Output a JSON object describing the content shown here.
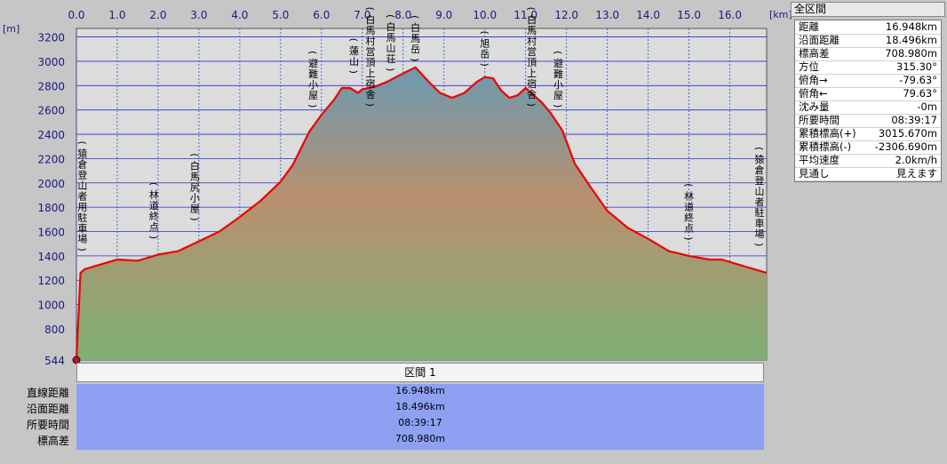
{
  "colors": {
    "plot_background": "#dcdcdc",
    "grid": "#2233cc",
    "profile_line": "#ee0000",
    "fill_top": "#6c9ab0",
    "fill_mid": "#b8906e",
    "fill_bottom": "#7fb075",
    "axis_text": "#1a1a80",
    "info_band": "#8ea0f2"
  },
  "chart_data": {
    "type": "area",
    "xlabel_unit": "[km]",
    "ylabel_unit": "[m]",
    "xlim": [
      0.0,
      16.9
    ],
    "ylim": [
      544,
      3270
    ],
    "x_ticks": [
      "0.0",
      "1.0",
      "2.0",
      "3.0",
      "4.0",
      "5.0",
      "6.0",
      "7.0",
      "8.0",
      "9.0",
      "10.0",
      "11.0",
      "12.0",
      "13.0",
      "14.0",
      "15.0",
      "16.0"
    ],
    "x_tick_values": [
      0,
      1,
      2,
      3,
      4,
      5,
      6,
      7,
      8,
      9,
      10,
      11,
      12,
      13,
      14,
      15,
      16
    ],
    "y_ticks": [
      "544",
      "800",
      "1000",
      "1200",
      "1400",
      "1600",
      "1800",
      "2000",
      "2200",
      "2400",
      "2600",
      "2800",
      "3000",
      "3200"
    ],
    "y_tick_values": [
      544,
      800,
      1000,
      1200,
      1400,
      1600,
      1800,
      2000,
      2200,
      2400,
      2600,
      2800,
      3000,
      3200
    ],
    "series": [
      {
        "x": [
          0.0,
          0.1,
          0.2,
          0.5,
          1.0,
          1.5,
          2.0,
          2.5,
          3.0,
          3.5,
          4.0,
          4.5,
          5.0,
          5.3,
          5.7,
          6.0,
          6.3,
          6.5,
          6.7,
          6.9,
          7.0,
          7.3,
          7.6,
          8.0,
          8.3,
          8.6,
          8.9,
          9.2,
          9.5,
          9.8,
          10.0,
          10.2,
          10.4,
          10.6,
          10.8,
          11.0,
          11.2,
          11.4,
          11.6,
          11.9,
          12.2,
          12.6,
          13.0,
          13.5,
          14.0,
          14.5,
          15.0,
          15.5,
          15.8,
          16.2,
          16.6,
          16.9
        ],
        "y": [
          544,
          1260,
          1290,
          1320,
          1370,
          1360,
          1410,
          1440,
          1520,
          1600,
          1720,
          1850,
          2010,
          2150,
          2420,
          2560,
          2680,
          2780,
          2780,
          2740,
          2770,
          2790,
          2830,
          2900,
          2950,
          2840,
          2740,
          2700,
          2740,
          2830,
          2870,
          2860,
          2760,
          2700,
          2720,
          2780,
          2720,
          2660,
          2580,
          2430,
          2160,
          1960,
          1770,
          1630,
          1540,
          1440,
          1400,
          1370,
          1370,
          1330,
          1290,
          1260
        ]
      }
    ],
    "annotations": [
      {
        "x": 0.15,
        "y": 1380,
        "label": "猿倉登山者用駐車場"
      },
      {
        "x": 1.9,
        "y": 1480,
        "label": "林道終点"
      },
      {
        "x": 2.9,
        "y": 1630,
        "label": "白馬尻小屋"
      },
      {
        "x": 5.8,
        "y": 2560,
        "label": "避難小屋"
      },
      {
        "x": 6.8,
        "y": 2840,
        "label": "蓮山"
      },
      {
        "x": 7.2,
        "y": 2570,
        "label": "白馬村営頂上宿舎"
      },
      {
        "x": 7.7,
        "y": 2860,
        "label": "白馬山荘"
      },
      {
        "x": 8.3,
        "y": 2940,
        "label": "白馬岳"
      },
      {
        "x": 10.0,
        "y": 2900,
        "label": "旭岳"
      },
      {
        "x": 11.15,
        "y": 2570,
        "label": "白馬村営頂上宿舎"
      },
      {
        "x": 11.8,
        "y": 2560,
        "label": "避難小屋"
      },
      {
        "x": 15.0,
        "y": 1470,
        "label": "林道終点"
      },
      {
        "x": 16.9,
        "y": 1420,
        "label": "猿倉登山者駐車場"
      }
    ]
  },
  "section": {
    "header": "区間 1",
    "rows": [
      {
        "label": "直線距離",
        "value": "16.948km"
      },
      {
        "label": "沿面距離",
        "value": "18.496km"
      },
      {
        "label": "所要時間",
        "value": "08:39:17"
      },
      {
        "label": "標高差",
        "value": "708.980m"
      }
    ]
  },
  "panel": {
    "title": "全区間",
    "rows": [
      {
        "label": "距離",
        "value": "16.948km"
      },
      {
        "label": "沿面距離",
        "value": "18.496km"
      },
      {
        "label": "標高差",
        "value": "708.980m"
      },
      {
        "label": "方位",
        "value": "315.30°"
      },
      {
        "label": "俯角→",
        "value": "-79.63°"
      },
      {
        "label": "俯角←",
        "value": "79.63°"
      },
      {
        "label": "沈み量",
        "value": "-0m"
      },
      {
        "label": "所要時間",
        "value": "08:39:17"
      },
      {
        "label": "累積標高(+)",
        "value": "3015.670m"
      },
      {
        "label": "累積標高(-)",
        "value": "-2306.690m"
      },
      {
        "label": "平均速度",
        "value": "2.0km/h"
      },
      {
        "label": "見通し",
        "value": "見えます"
      }
    ]
  }
}
